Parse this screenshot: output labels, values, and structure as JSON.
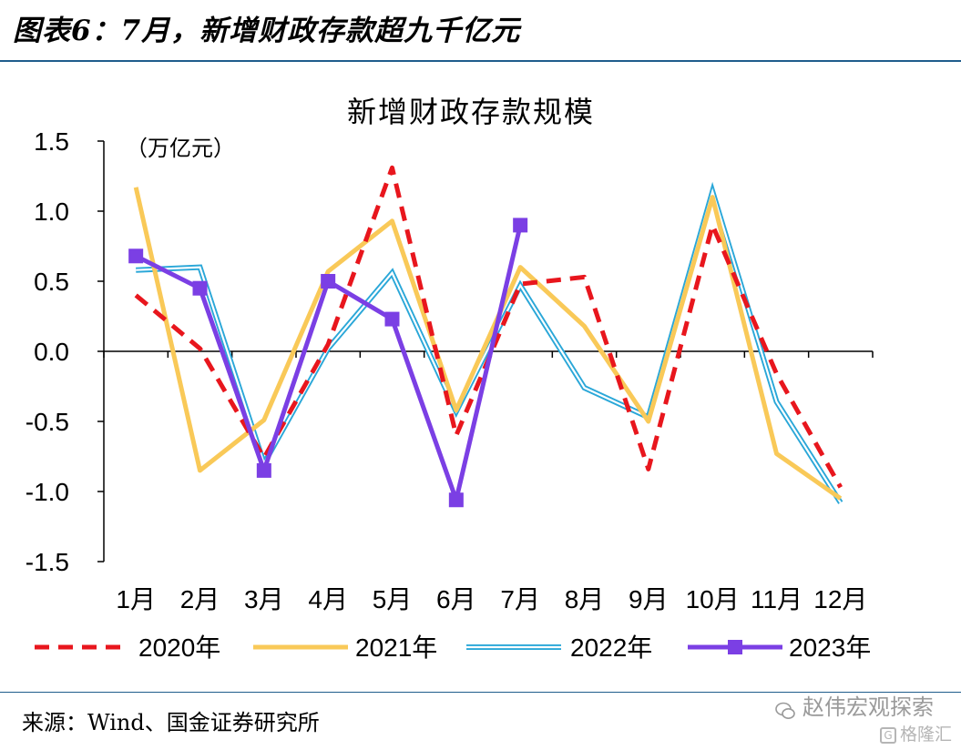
{
  "header": {
    "title": "图表6：7月，新增财政存款超九千亿元"
  },
  "footer": {
    "source": "来源：Wind、国金证券研究所"
  },
  "watermarks": {
    "wechat": "赵伟宏观探索",
    "gelonghui": "格隆汇"
  },
  "chart_data": {
    "type": "line",
    "title": "新增财政存款规模",
    "unit_label": "（万亿元）",
    "categories": [
      "1月",
      "2月",
      "3月",
      "4月",
      "5月",
      "6月",
      "7月",
      "8月",
      "9月",
      "10月",
      "11月",
      "12月"
    ],
    "ylim": [
      -1.5,
      1.5
    ],
    "yticks": [
      -1.5,
      -1.0,
      -0.5,
      0.0,
      0.5,
      1.0,
      1.5
    ],
    "ytick_labels": [
      "-1.5",
      "-1.0",
      "-0.5",
      "0.0",
      "0.5",
      "1.0",
      "1.5"
    ],
    "grid": false,
    "legend_position": "bottom",
    "series": [
      {
        "name": "2020年",
        "color": "#e8161d",
        "style": "dashed",
        "values": [
          0.4,
          0.02,
          -0.76,
          0.05,
          1.31,
          -0.6,
          0.48,
          0.53,
          -0.84,
          0.9,
          -0.16,
          -0.97
        ]
      },
      {
        "name": "2021年",
        "color": "#f9c958",
        "style": "solid",
        "values": [
          1.17,
          -0.85,
          -0.49,
          0.57,
          0.93,
          -0.42,
          0.6,
          0.18,
          -0.5,
          1.1,
          -0.73,
          -1.05
        ]
      },
      {
        "name": "2022年",
        "color": "#2aa7d8",
        "style": "double",
        "values": [
          0.58,
          0.6,
          -0.8,
          0.02,
          0.56,
          -0.43,
          0.47,
          -0.26,
          -0.47,
          1.14,
          -0.36,
          -1.08
        ]
      },
      {
        "name": "2023年",
        "color": "#7b3fe4",
        "style": "solid-marker",
        "values": [
          0.68,
          0.45,
          -0.85,
          0.5,
          0.23,
          -1.06,
          0.9,
          null,
          null,
          null,
          null,
          null
        ]
      }
    ]
  }
}
